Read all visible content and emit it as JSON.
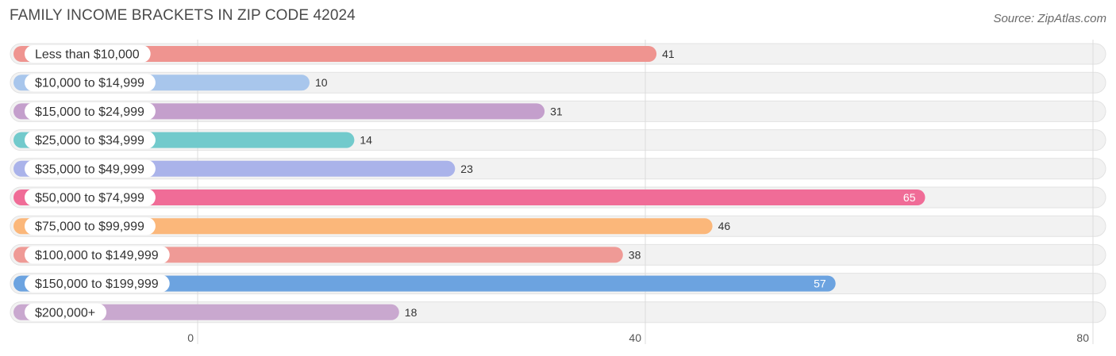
{
  "title": "FAMILY INCOME BRACKETS IN ZIP CODE 42024",
  "source": "Source: ZipAtlas.com",
  "chart_data": {
    "type": "bar",
    "orientation": "horizontal",
    "title": "FAMILY INCOME BRACKETS IN ZIP CODE 42024",
    "xlabel": "",
    "ylabel": "",
    "xlim": [
      0,
      80
    ],
    "ticks": [
      0,
      40,
      80
    ],
    "grid": true,
    "categories": [
      "Less than $10,000",
      "$10,000 to $14,999",
      "$15,000 to $24,999",
      "$25,000 to $34,999",
      "$35,000 to $49,999",
      "$50,000 to $74,999",
      "$75,000 to $99,999",
      "$100,000 to $149,999",
      "$150,000 to $199,999",
      "$200,000+"
    ],
    "values": [
      41,
      10,
      31,
      14,
      23,
      65,
      46,
      38,
      57,
      18
    ],
    "colors": [
      "#ef9490",
      "#a8c6ec",
      "#c49fcc",
      "#72cacc",
      "#aab3ea",
      "#f06c97",
      "#fbb77a",
      "#ef9a96",
      "#6ca3e0",
      "#c9a8cf"
    ]
  }
}
